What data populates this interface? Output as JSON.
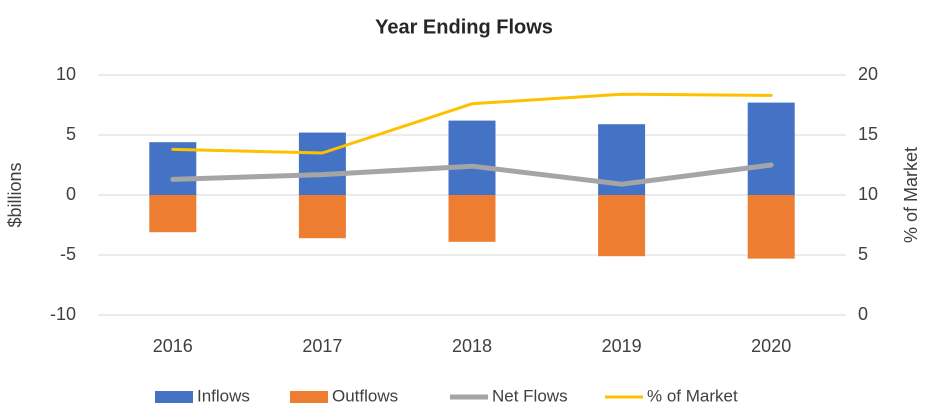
{
  "chart_data": {
    "type": "bar",
    "title": "Year Ending Flows",
    "ylabel": "$billions",
    "y2label": "% of Market",
    "categories": [
      "2016",
      "2017",
      "2018",
      "2019",
      "2020"
    ],
    "series": [
      {
        "name": "Inflows",
        "color": "#4472c4",
        "type": "bar",
        "values": [
          4.4,
          5.2,
          6.2,
          5.9,
          7.7
        ]
      },
      {
        "name": "Outflows",
        "color": "#ed7d31",
        "type": "bar",
        "values": [
          -3.1,
          -3.6,
          -3.9,
          -5.1,
          -5.3
        ]
      },
      {
        "name": "Net Flows",
        "color": "#a5a5a5",
        "type": "line",
        "values": [
          1.3,
          1.7,
          2.4,
          0.9,
          2.5
        ]
      },
      {
        "name": "% of Market",
        "color": "#ffc000",
        "type": "line",
        "axis": "y2",
        "values": [
          13.8,
          13.5,
          17.6,
          18.4,
          18.3
        ]
      }
    ],
    "ylim": [
      -10,
      10
    ],
    "yticks": [
      -10,
      -5,
      0,
      5,
      10
    ],
    "y2lim": [
      0,
      20
    ],
    "y2ticks": [
      0,
      5,
      10,
      15,
      20
    ],
    "grid": true,
    "legend": "bottom"
  }
}
